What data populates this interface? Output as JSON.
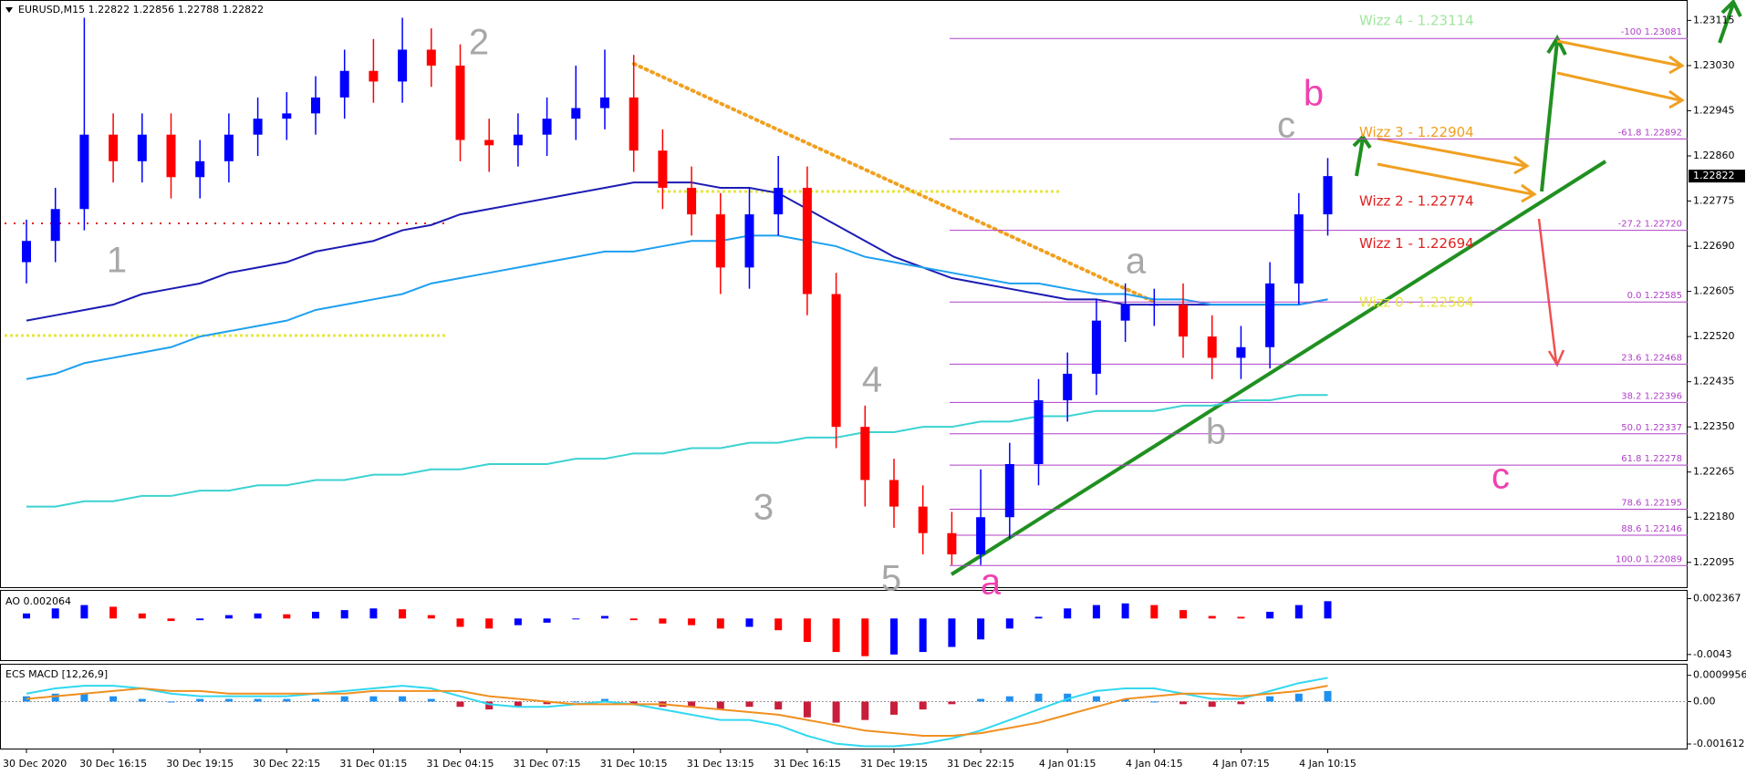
{
  "chart_data": [
    {
      "type": "candlestick",
      "title": "EURUSD,M15  1.22822 1.22856 1.22788 1.22822",
      "categories": [
        "30 Dec 2020",
        null,
        null,
        "30 Dec 16:15",
        null,
        null,
        "30 Dec 19:15",
        null,
        null,
        "30 Dec 22:15",
        null,
        null,
        "31 Dec 01:15",
        null,
        null,
        "31 Dec 04:15",
        null,
        null,
        "31 Dec 07:15",
        null,
        null,
        "31 Dec 10:15",
        null,
        null,
        "31 Dec 13:15",
        null,
        null,
        "31 Dec 16:15",
        null,
        null,
        "31 Dec 19:15",
        null,
        null,
        "31 Dec 22:15",
        null,
        null,
        "4 Jan 01:15",
        null,
        null,
        "4 Jan 04:15",
        null,
        null,
        "4 Jan 07:15",
        null,
        null,
        "4 Jan 10:15"
      ],
      "open": [
        1.2266,
        1.227,
        1.2276,
        1.229,
        1.2285,
        1.229,
        1.2282,
        1.2285,
        1.229,
        1.2293,
        1.2294,
        1.2297,
        1.2302,
        1.23,
        1.2306,
        1.2303,
        1.2289,
        1.2288,
        1.229,
        1.2293,
        1.2295,
        1.2297,
        1.2287,
        1.228,
        1.2275,
        1.2265,
        1.2275,
        1.228,
        1.226,
        1.2235,
        1.2225,
        1.222,
        1.2215,
        1.2211,
        1.2218,
        1.2228,
        1.224,
        1.2245,
        1.2255,
        1.2258,
        1.2258,
        1.2252,
        1.2248,
        1.225,
        1.2262,
        1.2275
      ],
      "high": [
        1.2274,
        1.228,
        1.2312,
        1.2294,
        1.2294,
        1.2294,
        1.2289,
        1.2294,
        1.2297,
        1.2298,
        1.2301,
        1.2306,
        1.2308,
        1.2312,
        1.231,
        1.2307,
        1.2293,
        1.2294,
        1.2297,
        1.2303,
        1.2306,
        1.2305,
        1.2291,
        1.2284,
        1.2279,
        1.228,
        1.2286,
        1.2284,
        1.2264,
        1.2239,
        1.2229,
        1.2224,
        1.2219,
        1.2227,
        1.2232,
        1.2244,
        1.2249,
        1.2259,
        1.2262,
        1.2261,
        1.2262,
        1.2256,
        1.2254,
        1.2266,
        1.2279,
        1.22856
      ],
      "low": [
        1.2262,
        1.2266,
        1.2272,
        1.2281,
        1.2281,
        1.2278,
        1.2278,
        1.2281,
        1.2286,
        1.2289,
        1.229,
        1.2293,
        1.2296,
        1.2296,
        1.2299,
        1.2285,
        1.2283,
        1.2284,
        1.2286,
        1.2289,
        1.2291,
        1.2283,
        1.2276,
        1.2271,
        1.226,
        1.2261,
        1.2271,
        1.2256,
        1.2231,
        1.222,
        1.2216,
        1.2211,
        1.2209,
        1.2209,
        1.2214,
        1.2224,
        1.2236,
        1.2241,
        1.2251,
        1.2254,
        1.2248,
        1.2244,
        1.2244,
        1.2246,
        1.2258,
        1.2271
      ],
      "close": [
        1.227,
        1.2276,
        1.229,
        1.2285,
        1.229,
        1.2282,
        1.2285,
        1.229,
        1.2293,
        1.2294,
        1.2297,
        1.2302,
        1.23,
        1.2306,
        1.2303,
        1.2289,
        1.2288,
        1.229,
        1.2293,
        1.2295,
        1.2297,
        1.2287,
        1.228,
        1.2275,
        1.2265,
        1.2275,
        1.228,
        1.226,
        1.2235,
        1.2225,
        1.222,
        1.2215,
        1.2211,
        1.2218,
        1.2228,
        1.224,
        1.2245,
        1.2255,
        1.2258,
        1.2258,
        1.2252,
        1.2248,
        1.225,
        1.2262,
        1.2275,
        1.22822
      ],
      "up_color": "#0000ff",
      "down_color": "#ff0000",
      "ylim": [
        1.2205,
        1.2315
      ],
      "yticks": [
        1.23115,
        {
          "value": 1.2303,
          "label": "1.23030"
        },
        1.22945,
        {
          "value": 1.2286,
          "label": "1.22860"
        },
        1.22775,
        {
          "value": 1.2269,
          "label": "1.22690"
        },
        1.22605,
        {
          "value": 1.2252,
          "label": "1.22520"
        },
        1.22435,
        {
          "value": 1.2235,
          "label": "1.22350"
        },
        1.22265,
        {
          "value": 1.2218,
          "label": "1.22180"
        },
        1.22095
      ],
      "price_tag": 1.22822,
      "lines": [
        {
          "color": "#1c1cb4",
          "values": [
            1.2255,
            1.2256,
            1.2257,
            1.2258,
            1.226,
            1.2261,
            1.2262,
            1.2264,
            1.2265,
            1.2266,
            1.2268,
            1.2269,
            1.227,
            1.2272,
            1.2273,
            1.2275,
            1.2276,
            1.2277,
            1.2278,
            1.2279,
            1.228,
            1.2281,
            1.2281,
            1.2281,
            1.228,
            1.228,
            1.2279,
            1.2276,
            1.2273,
            1.227,
            1.2267,
            1.2265,
            1.2263,
            1.2262,
            1.2261,
            1.226,
            1.2259,
            1.2259,
            1.2258,
            1.2258,
            1.2258,
            1.2258,
            1.2258,
            1.2258,
            1.2258,
            1.2259
          ]
        },
        {
          "color": "#1ea0f0",
          "values": [
            1.2244,
            1.2245,
            1.2247,
            1.2248,
            1.2249,
            1.225,
            1.2252,
            1.2253,
            1.2254,
            1.2255,
            1.2257,
            1.2258,
            1.2259,
            1.226,
            1.2262,
            1.2263,
            1.2264,
            1.2265,
            1.2266,
            1.2267,
            1.2268,
            1.2268,
            1.2269,
            1.227,
            1.227,
            1.2271,
            1.2271,
            1.227,
            1.2269,
            1.2267,
            1.2266,
            1.2265,
            1.2264,
            1.2263,
            1.2262,
            1.2262,
            1.2261,
            1.226,
            1.226,
            1.2259,
            1.2259,
            1.2258,
            1.2258,
            1.2258,
            1.2258,
            1.2259
          ]
        },
        {
          "color": "#3cd2d2",
          "values": [
            1.222,
            1.222,
            1.2221,
            1.2221,
            1.2222,
            1.2222,
            1.2223,
            1.2223,
            1.2224,
            1.2224,
            1.2225,
            1.2225,
            1.2226,
            1.2226,
            1.2227,
            1.2227,
            1.2228,
            1.2228,
            1.2228,
            1.2229,
            1.2229,
            1.223,
            1.223,
            1.2231,
            1.2231,
            1.2232,
            1.2232,
            1.2233,
            1.2233,
            1.2234,
            1.2234,
            1.2235,
            1.2235,
            1.2236,
            1.2236,
            1.2237,
            1.2237,
            1.2238,
            1.2238,
            1.2238,
            1.2239,
            1.2239,
            1.224,
            1.224,
            1.2241,
            1.2241
          ]
        }
      ],
      "levels": [
        {
          "label": "-100 1.23081",
          "value": 1.23081
        },
        {
          "label": "-61.8 1.22892",
          "value": 1.22892
        },
        {
          "label": "-27.2 1.22720",
          "value": 1.2272
        },
        {
          "label": "0.0 1.22585",
          "value": 1.22585
        },
        {
          "label": "23.6 1.22468",
          "value": 1.22468
        },
        {
          "label": "38.2 1.22396",
          "value": 1.22396
        },
        {
          "label": "50.0 1.22337",
          "value": 1.22337
        },
        {
          "label": "61.8 1.22278",
          "value": 1.22278
        },
        {
          "label": "78.6 1.22195",
          "value": 1.22195
        },
        {
          "label": "88.6 1.22146",
          "value": 1.22146
        },
        {
          "label": "100.0 1.22089",
          "value": 1.22089
        }
      ],
      "level_color": "#b040c8",
      "wizz": [
        {
          "label": "Wizz 4 - 1.23114",
          "value": 1.23114,
          "color": "#a0e6a0"
        },
        {
          "label": "Wizz 3 - 1.22904",
          "value": 1.22904,
          "color": "#f0a020"
        },
        {
          "label": "Wizz 2 - 1.22774",
          "value": 1.22774,
          "color": "#e02020"
        },
        {
          "label": "Wizz 1 - 1.22694",
          "value": 1.22694,
          "color": "#e02020"
        },
        {
          "label": "Wizz 0 - 1.22584",
          "value": 1.22584,
          "color": "#e6e640"
        }
      ],
      "annotations": [
        {
          "text": "1",
          "color": "#a8a8a8"
        },
        {
          "text": "2",
          "color": "#a8a8a8"
        },
        {
          "text": "3",
          "color": "#a8a8a8"
        },
        {
          "text": "4",
          "color": "#a8a8a8"
        },
        {
          "text": "5",
          "color": "#a8a8a8"
        },
        {
          "text": "a",
          "color": "#a8a8a8"
        },
        {
          "text": "b",
          "color": "#a8a8a8"
        },
        {
          "text": "c",
          "color": "#a8a8a8"
        },
        {
          "text": "a",
          "color": "#f040b0"
        },
        {
          "text": "b",
          "color": "#f040b0"
        },
        {
          "text": "c",
          "color": "#f040b0"
        }
      ]
    },
    {
      "type": "bar",
      "title": "AO 0.002064",
      "values": [
        0.0006,
        0.0012,
        0.0016,
        0.0014,
        0.0006,
        -0.0003,
        -0.0002,
        0.0004,
        0.0006,
        0.0005,
        0.0008,
        0.001,
        0.0012,
        0.0011,
        0.0004,
        -0.001,
        -0.0012,
        -0.0008,
        -0.0005,
        -0.0001,
        0.0003,
        -0.0002,
        -0.0006,
        -0.0008,
        -0.0012,
        -0.001,
        -0.0014,
        -0.0028,
        -0.004,
        -0.0045,
        -0.0043,
        -0.004,
        -0.0034,
        -0.0025,
        -0.0012,
        0.0002,
        0.0012,
        0.0016,
        0.0018,
        0.0016,
        0.001,
        0.0003,
        0.0002,
        0.0008,
        0.0016,
        0.002064
      ],
      "up_color": "#0000ff",
      "down_color": "#ff0000",
      "ylim": [
        -0.00497,
        0.0033
      ],
      "yticks": [
        0.002367,
        -0.0043
      ]
    },
    {
      "type": "macd",
      "title": "ECS MACD [12,26,9]",
      "histogram": [
        0.0002,
        0.0003,
        0.0003,
        0.0002,
        0.0001,
        0,
        0.0001,
        0.0001,
        0.0001,
        0.0001,
        0.0001,
        0.0002,
        0.0002,
        0.0002,
        0.0001,
        -0.0002,
        -0.0003,
        -0.0002,
        -0.0001,
        0,
        0.0001,
        -0.0001,
        -0.0002,
        -0.0002,
        -0.0003,
        -0.0002,
        -0.0003,
        -0.0006,
        -0.0008,
        -0.0007,
        -0.0005,
        -0.0003,
        -0.0001,
        0.0001,
        0.0002,
        0.0003,
        0.0003,
        0.0002,
        0.0001,
        0,
        -0.0001,
        -0.0002,
        -0.0001,
        0.0002,
        0.0003,
        0.0004
      ],
      "up_color": "#2090f0",
      "down_color": "#c81e3c",
      "lines": [
        {
          "color": "#30d8f0",
          "values": [
            0.0003,
            0.0005,
            0.0006,
            0.0006,
            0.0005,
            0.0003,
            0.0002,
            0.0002,
            0.0002,
            0.0002,
            0.0003,
            0.0004,
            0.0005,
            0.0006,
            0.0005,
            0.0002,
            -0.0001,
            -0.0002,
            -0.0002,
            -0.0001,
            0,
            -0.0001,
            -0.0003,
            -0.0005,
            -0.0007,
            -0.0007,
            -0.0009,
            -0.0013,
            -0.0016,
            -0.0017,
            -0.0017,
            -0.0016,
            -0.0014,
            -0.0011,
            -0.0007,
            -0.0003,
            0.0001,
            0.0004,
            0.0005,
            0.0005,
            0.0003,
            0.0001,
            0.0001,
            0.0004,
            0.0007,
            0.0009
          ]
        },
        {
          "color": "#f09020",
          "values": [
            0.0001,
            0.0002,
            0.0003,
            0.0004,
            0.0005,
            0.0004,
            0.0004,
            0.0003,
            0.0003,
            0.0003,
            0.0003,
            0.0003,
            0.0004,
            0.0004,
            0.0004,
            0.0004,
            0.0002,
            0.0001,
            0,
            -0.0001,
            -0.0001,
            -0.0001,
            -0.0001,
            -0.0002,
            -0.0003,
            -0.0004,
            -0.0005,
            -0.0007,
            -0.0009,
            -0.0011,
            -0.0012,
            -0.0013,
            -0.0013,
            -0.0012,
            -0.001,
            -0.0008,
            -0.0005,
            -0.0002,
            0.0001,
            0.0002,
            0.0003,
            0.0003,
            0.0002,
            0.0003,
            0.0004,
            0.0006
          ]
        }
      ],
      "ylim": [
        -0.00175,
        0.0014
      ],
      "yticks": [
        0.0009956,
        {
          "value": 0,
          "label": "0.00"
        },
        -0.001612
      ]
    }
  ]
}
